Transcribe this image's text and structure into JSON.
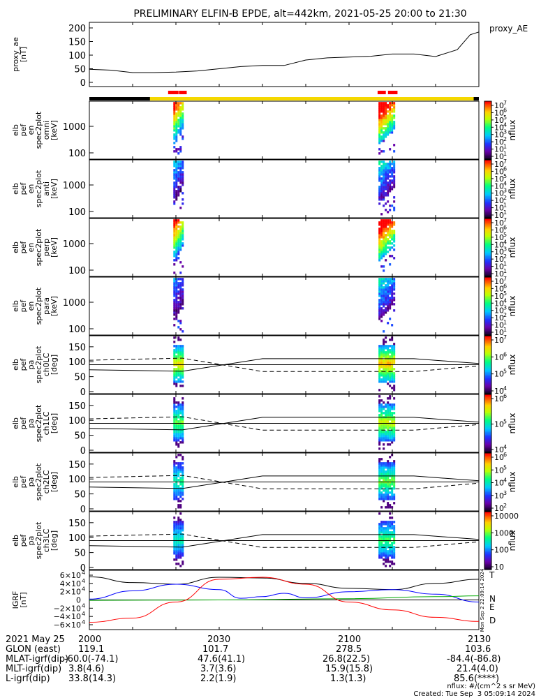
{
  "header": {
    "title": "PRELIMINARY ELFIN-B EPDE, alt=442km, 2021-05-25 20:00 to 21:30"
  },
  "colors": {
    "orbit_dark": "#000000",
    "orbit_light": "#f5d800",
    "science_zone": "#ff0000",
    "trace": "#000000",
    "b_north": "#0000ff",
    "b_east": "#00aa00",
    "b_down": "#ff0000"
  },
  "chart_data": [
    {
      "type": "line",
      "panel": "proxy_ae",
      "ylabel": [
        "proxy_ae",
        "[nT]"
      ],
      "legend": "proxy_AE",
      "ylim": [
        0,
        210
      ],
      "yticks": [
        "200",
        "150",
        "100",
        "50",
        "0"
      ],
      "ytick_values": [
        200,
        150,
        100,
        50,
        0
      ],
      "xlim": [
        0,
        90
      ],
      "x": [
        0,
        5,
        10,
        15,
        20,
        25,
        30,
        35,
        40,
        45,
        50,
        55,
        60,
        65,
        70,
        75,
        80,
        85,
        88,
        90
      ],
      "values": [
        48,
        45,
        36,
        36,
        38,
        42,
        50,
        58,
        62,
        62,
        82,
        90,
        93,
        96,
        104,
        104,
        95,
        120,
        175,
        185
      ]
    },
    {
      "type": "bar",
      "panel": "orbit-bar",
      "note": "orbit segments in minutes after 20:00",
      "light_range": [
        14,
        88.8
      ],
      "science_zones": [
        [
          18.2,
          20.6
        ],
        [
          20.7,
          22.5
        ],
        [
          66.6,
          68.5
        ],
        [
          69,
          71.2
        ]
      ]
    },
    {
      "type": "heatmap",
      "panel": "spec-omni",
      "ylabel": [
        "elb",
        "pef",
        "en",
        "spec2plot",
        "omni",
        "[keV]"
      ],
      "yticks": [
        "1000",
        "100"
      ],
      "colorbar": {
        "label": "nflux",
        "ticks": [
          "10",
          "10",
          "10",
          "10",
          "10",
          "10",
          "10",
          "10"
        ],
        "exponents": [
          "7",
          "6",
          "5",
          "4",
          "3",
          "2",
          "1",
          "1"
        ],
        "min": 1,
        "max": 7
      },
      "bursts": [
        {
          "start": 19.4,
          "end": 21.6,
          "level": 0.8
        },
        {
          "start": 66.8,
          "end": 70.8,
          "level": 0.95
        }
      ]
    },
    {
      "type": "heatmap",
      "panel": "spec-anti",
      "ylabel": [
        "elb",
        "pef",
        "en",
        "spec2plot",
        "anti",
        "[keV]"
      ],
      "yticks": [
        "1000",
        "100"
      ],
      "colorbar": {
        "label": "nflux",
        "ticks": [
          "10",
          "10",
          "10",
          "10",
          "10",
          "10",
          "10",
          "10"
        ],
        "exponents": [
          "7",
          "6",
          "5",
          "4",
          "3",
          "2",
          "1",
          "1"
        ],
        "min": 1,
        "max": 7
      },
      "bursts": [
        {
          "start": 19.4,
          "end": 21.6,
          "level": 0.35
        },
        {
          "start": 66.8,
          "end": 70.8,
          "level": 0.4
        }
      ]
    },
    {
      "type": "heatmap",
      "panel": "spec-perp",
      "ylabel": [
        "elb",
        "pef",
        "en",
        "spec2plot",
        "perp",
        "[keV]"
      ],
      "yticks": [
        "1000",
        "100"
      ],
      "colorbar": {
        "label": "nflux",
        "ticks": [
          "10",
          "10",
          "10",
          "10",
          "10",
          "10",
          "10",
          "10"
        ],
        "exponents": [
          "7",
          "6",
          "5",
          "4",
          "3",
          "2",
          "1",
          "1"
        ],
        "min": 1,
        "max": 7
      },
      "bursts": [
        {
          "start": 19.4,
          "end": 21.6,
          "level": 0.8
        },
        {
          "start": 66.8,
          "end": 70.8,
          "level": 0.95
        }
      ]
    },
    {
      "type": "heatmap",
      "panel": "spec-para",
      "ylabel": [
        "elb",
        "pef",
        "en",
        "spec2plot",
        "para",
        "[keV]"
      ],
      "yticks": [
        "1000",
        "100"
      ],
      "colorbar": {
        "label": "nflux",
        "ticks": [
          "10",
          "10",
          "10",
          "10",
          "10",
          "10",
          "10",
          "10"
        ],
        "exponents": [
          "7",
          "6",
          "5",
          "4",
          "3",
          "2",
          "1",
          "1"
        ],
        "min": 1,
        "max": 7
      },
      "bursts": [
        {
          "start": 19.4,
          "end": 21.6,
          "level": 0.3
        },
        {
          "start": 66.8,
          "end": 70.8,
          "level": 0.4
        }
      ]
    },
    {
      "type": "heatmap",
      "panel": "pa-ch0",
      "ylabel": [
        "elb",
        "pef",
        "pa",
        "spec2plot",
        "ch0LC",
        "[deg]"
      ],
      "yticks": [
        "150",
        "100",
        "50",
        "0"
      ],
      "ylim": [
        0,
        180
      ],
      "colorbar": {
        "label": "nflux",
        "ticks": [
          "10",
          "10",
          "10",
          "10"
        ],
        "exponents": [
          "7",
          "6",
          "5",
          "4"
        ],
        "min": 4,
        "max": 7
      },
      "bursts": [
        {
          "start": 19.4,
          "end": 21.6,
          "level": 0.85
        },
        {
          "start": 66.8,
          "end": 70.8,
          "level": 0.9
        }
      ]
    },
    {
      "type": "heatmap",
      "panel": "pa-ch1",
      "ylabel": [
        "elb",
        "pef",
        "pa",
        "spec2plot",
        "ch1LC",
        "[deg]"
      ],
      "yticks": [
        "150",
        "100",
        "50",
        "0"
      ],
      "ylim": [
        0,
        180
      ],
      "colorbar": {
        "label": "nflux",
        "ticks": [
          "10",
          "10",
          "10"
        ],
        "exponents": [
          "6",
          "5",
          "4"
        ],
        "min": 3.5,
        "max": 6.6
      },
      "bursts": [
        {
          "start": 19.4,
          "end": 21.6,
          "level": 0.7
        },
        {
          "start": 66.8,
          "end": 70.8,
          "level": 0.8
        }
      ]
    },
    {
      "type": "heatmap",
      "panel": "pa-ch2",
      "ylabel": [
        "elb",
        "pef",
        "pa",
        "spec2plot",
        "ch2LC",
        "[deg]"
      ],
      "yticks": [
        "150",
        "100",
        "50",
        "0"
      ],
      "ylim": [
        0,
        180
      ],
      "colorbar": {
        "label": "nflux",
        "ticks": [
          "10",
          "10",
          "10",
          "10",
          "10"
        ],
        "exponents": [
          "6",
          "5",
          "4",
          "3",
          "2"
        ],
        "min": 1.8,
        "max": 6.3
      },
      "bursts": [
        {
          "start": 19.4,
          "end": 21.6,
          "level": 0.6
        },
        {
          "start": 66.8,
          "end": 70.8,
          "level": 0.7
        }
      ]
    },
    {
      "type": "heatmap",
      "panel": "pa-ch3",
      "ylabel": [
        "elb",
        "pef",
        "pa",
        "spec2plot",
        "ch3LC",
        "[deg]"
      ],
      "yticks": [
        "150",
        "100",
        "50",
        "0"
      ],
      "ylim": [
        0,
        180
      ],
      "colorbar": {
        "label": "nflux",
        "ticks": [
          "10000",
          "1000",
          "100",
          "10"
        ],
        "min": 1,
        "max": 4
      },
      "bursts": [
        {
          "start": 19.4,
          "end": 21.6,
          "level": 0.55
        },
        {
          "start": 66.8,
          "end": 70.8,
          "level": 0.65
        }
      ]
    },
    {
      "type": "line",
      "panel": "pa-reference",
      "note": "solid and dashed lines overplotted on pitch-angle panels (deg)",
      "x": [
        0,
        21.5,
        40,
        75,
        90
      ],
      "solid": [
        73,
        68,
        110,
        110,
        94
      ],
      "dashed": [
        105,
        112,
        67,
        67,
        86
      ]
    },
    {
      "type": "line",
      "panel": "igrf",
      "ylabel": [
        "IGRF",
        "[nT]"
      ],
      "ylim": [
        -60000,
        60000
      ],
      "yticks": [
        "6×10",
        "4×10",
        "2×10",
        "0",
        "−2×10",
        "−4×10",
        "−6×10"
      ],
      "ytick_exp": [
        "4",
        "4",
        "4",
        "",
        "4",
        "4",
        "4"
      ],
      "ytick_values": [
        60000,
        40000,
        20000,
        0,
        -20000,
        -40000,
        -60000
      ],
      "legend": [
        "T",
        "N",
        "E",
        "D"
      ],
      "series": [
        {
          "name": "T",
          "x": [
            0,
            10,
            20,
            30,
            40,
            50,
            60,
            70,
            80,
            90
          ],
          "values": [
            56000,
            42000,
            38000,
            55000,
            53000,
            40000,
            28000,
            25000,
            40000,
            50000
          ]
        },
        {
          "name": "N",
          "x": [
            0,
            10,
            20,
            30,
            35,
            40,
            45,
            50,
            60,
            70,
            80,
            90
          ],
          "values": [
            2000,
            22000,
            38000,
            25000,
            4000,
            8000,
            16000,
            5000,
            20000,
            25000,
            14000,
            -5000
          ]
        },
        {
          "name": "E",
          "x": [
            0,
            30,
            60,
            80,
            90
          ],
          "values": [
            -1000,
            0,
            3000,
            8000,
            10000
          ]
        },
        {
          "name": "D",
          "x": [
            0,
            10,
            20,
            30,
            40,
            50,
            60,
            70,
            80,
            90
          ],
          "values": [
            -54000,
            -44000,
            -5000,
            50000,
            55000,
            38000,
            -5000,
            -24000,
            -42000,
            -52000
          ]
        }
      ]
    }
  ],
  "side_stamp": "Mon Sep  2 22:09:14 2024",
  "ephemeris": {
    "labels": [
      "2021 May 25",
      "GLON (east)",
      "MLAT-igrf(dip)",
      "MLT-igrf(dip)",
      "L-igrf(dip)"
    ],
    "times": [
      "2000",
      "2030",
      "2100",
      "2130"
    ],
    "rows": [
      [
        "119.1",
        "101.7",
        "278.5",
        "103.6"
      ],
      [
        "-60.0(-74.1)",
        "47.6(41.1)",
        "26.8(22.5)",
        "-84.4(-86.8)"
      ],
      [
        "3.8(4.6)",
        "3.7(3.6)",
        "15.9(15.8)",
        "21.4(4.0)"
      ],
      [
        "33.8(14.3)",
        "2.2(1.9)",
        "1.3(1.3)",
        "85.6(****)"
      ]
    ]
  },
  "footer": {
    "units": "nflux: #/(cm^2 s sr MeV)",
    "created": "Created: Tue Sep  3 05:09:14 2024"
  }
}
